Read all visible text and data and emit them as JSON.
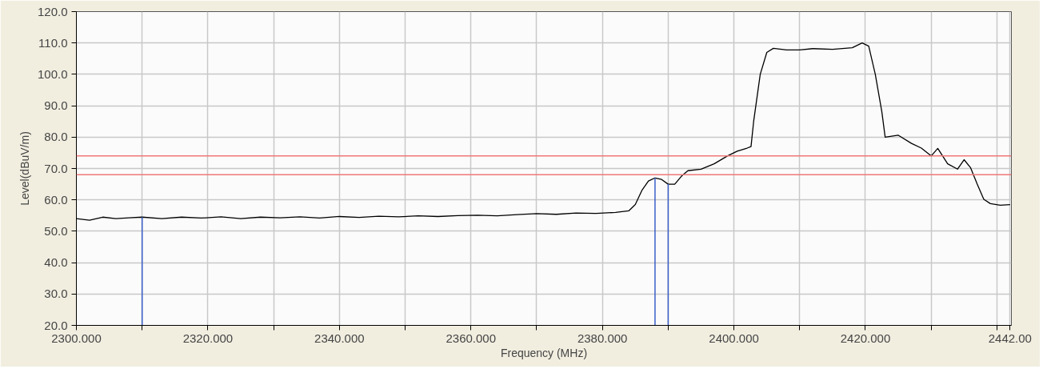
{
  "chart_data": {
    "type": "line",
    "xlabel": "Frequency (MHz)",
    "ylabel": "Level(dBuV/m)",
    "xlim": [
      2300,
      2442.2
    ],
    "ylim": [
      20,
      120
    ],
    "xticks": [
      {
        "value": 2300,
        "label": "2300.000"
      },
      {
        "value": 2310,
        "label": null
      },
      {
        "value": 2320,
        "label": "2320.000"
      },
      {
        "value": 2330,
        "label": null
      },
      {
        "value": 2340,
        "label": "2340.000"
      },
      {
        "value": 2350,
        "label": null
      },
      {
        "value": 2360,
        "label": "2360.000"
      },
      {
        "value": 2370,
        "label": null
      },
      {
        "value": 2380,
        "label": "2380.000"
      },
      {
        "value": 2390,
        "label": null
      },
      {
        "value": 2400,
        "label": "2400.000"
      },
      {
        "value": 2410,
        "label": null
      },
      {
        "value": 2420,
        "label": "2420.000"
      },
      {
        "value": 2430,
        "label": null
      },
      {
        "value": 2440,
        "label": null
      },
      {
        "value": 2442,
        "label": "2442.00"
      }
    ],
    "yticks": [
      {
        "value": 20,
        "label": "20.0"
      },
      {
        "value": 30,
        "label": "30.0"
      },
      {
        "value": 40,
        "label": "40.0"
      },
      {
        "value": 50,
        "label": "50.0"
      },
      {
        "value": 60,
        "label": "60.0"
      },
      {
        "value": 70,
        "label": "70.0"
      },
      {
        "value": 80,
        "label": "80.0"
      },
      {
        "value": 90,
        "label": "90.0"
      },
      {
        "value": 100,
        "label": "100.0"
      },
      {
        "value": 110,
        "label": "110.0"
      },
      {
        "value": 120,
        "label": "120.0"
      }
    ],
    "grid": true,
    "marker": "none",
    "line_style": "solid",
    "x": [
      2300,
      2302,
      2304,
      2306,
      2308,
      2310,
      2313,
      2316,
      2319,
      2322,
      2325,
      2328,
      2331,
      2334,
      2337,
      2340,
      2343,
      2346,
      2349,
      2352,
      2355,
      2358,
      2361,
      2364,
      2367,
      2370,
      2373,
      2376,
      2379,
      2382,
      2384,
      2385,
      2386,
      2387,
      2388,
      2389,
      2390,
      2391,
      2392,
      2393,
      2395,
      2397,
      2399,
      2400.5,
      2402,
      2402.6,
      2403,
      2404,
      2405,
      2406,
      2408,
      2410,
      2412,
      2415,
      2418,
      2419.5,
      2420.5,
      2421.5,
      2422.5,
      2423,
      2425,
      2427,
      2428.5,
      2430,
      2431,
      2432.5,
      2434,
      2435,
      2436,
      2437,
      2438,
      2439,
      2440.5,
      2442
    ],
    "series": [
      {
        "color": "#000000",
        "values": [
          54,
          53.5,
          54.5,
          54,
          54.3,
          54.5,
          54,
          54.5,
          54.2,
          54.6,
          54,
          54.5,
          54.3,
          54.6,
          54.2,
          54.7,
          54.4,
          54.8,
          54.6,
          54.9,
          54.7,
          55,
          55.1,
          54.9,
          55.3,
          55.6,
          55.4,
          55.8,
          55.7,
          56,
          56.5,
          58.5,
          63,
          66,
          67,
          66.5,
          65,
          65,
          67.5,
          69.3,
          69.8,
          71.5,
          74,
          75.5,
          76.5,
          77,
          85,
          100,
          107,
          108.3,
          107.8,
          107.8,
          108.2,
          108,
          108.5,
          110,
          109,
          100,
          88,
          80,
          80.6,
          78,
          76.5,
          74,
          76.4,
          71.5,
          69.8,
          72.8,
          70.2,
          65,
          60.2,
          58.8,
          58.3,
          58.5
        ]
      }
    ],
    "ref_lines": [
      {
        "axis": "y",
        "value": 74,
        "color": "#f07878"
      },
      {
        "axis": "y",
        "value": 68,
        "color": "#f07878"
      },
      {
        "axis": "x",
        "value": 2310,
        "color": "#3a5fc8"
      },
      {
        "axis": "x",
        "value": 2388,
        "color": "#3a5fc8"
      },
      {
        "axis": "x",
        "value": 2390,
        "color": "#3a5fc8"
      }
    ]
  }
}
